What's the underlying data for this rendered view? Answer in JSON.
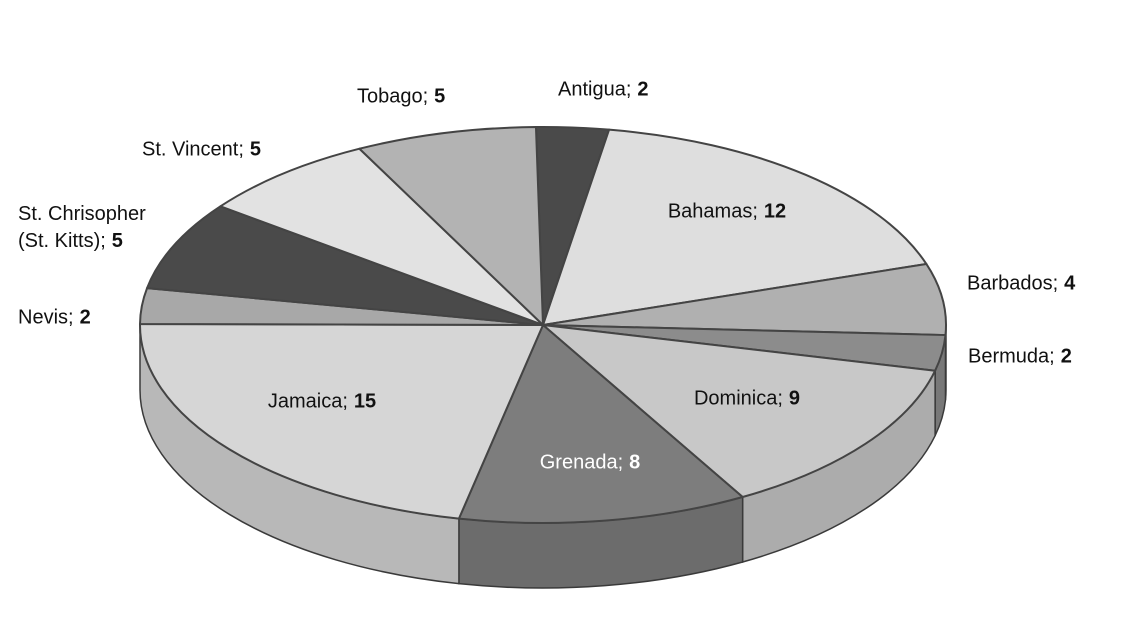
{
  "chart_data": {
    "type": "pie",
    "categories": [
      "Antigua;",
      "Bahamas;",
      "Barbados;",
      "Bermuda;",
      "Dominica;",
      "Grenada;",
      "Jamaica;",
      "Nevis;",
      "St. Chrisopher\n(St. Kitts);",
      "St. Vincent;",
      "Tobago;"
    ],
    "values": [
      2,
      12,
      4,
      2,
      9,
      8,
      15,
      2,
      5,
      5,
      5
    ],
    "colors": [
      "#4a4a4a",
      "#dedede",
      "#b0b0b0",
      "#8c8c8c",
      "#c8c8c8",
      "#7d7d7d",
      "#d6d6d6",
      "#a8a8a8",
      "#4a4a4a",
      "#e2e2e2",
      "#b3b3b3"
    ]
  }
}
